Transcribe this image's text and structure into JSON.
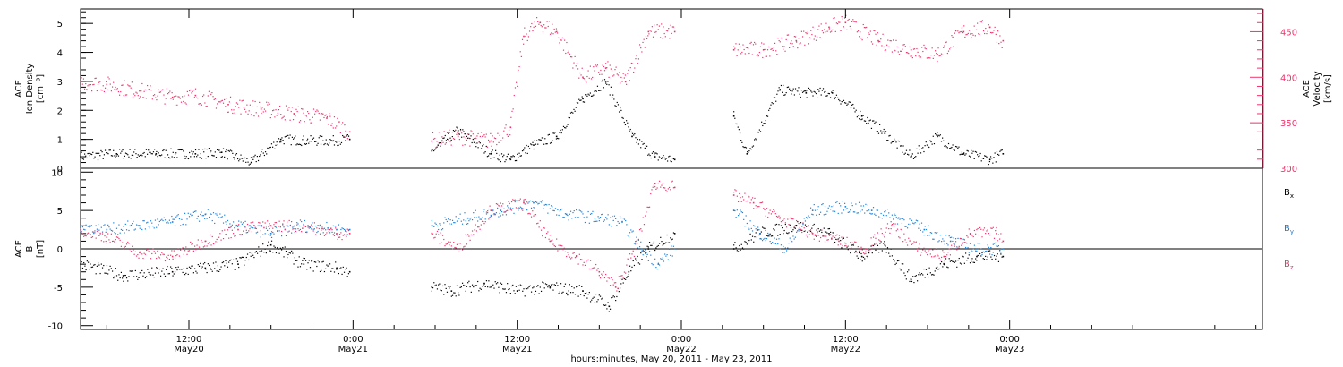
{
  "figure": {
    "xaxis_title": "hours:minutes, May 20, 2011 - May 23, 2011",
    "x_ticks": [
      {
        "x": 0.5,
        "time": "12:00",
        "day": "May20"
      },
      {
        "x": 1.0,
        "time": "0:00",
        "day": "May21"
      },
      {
        "x": 1.5,
        "time": "12:00",
        "day": "May21"
      },
      {
        "x": 2.0,
        "time": "0:00",
        "day": "May22"
      },
      {
        "x": 2.5,
        "time": "12:00",
        "day": "May22"
      },
      {
        "x": 3.0,
        "time": "0:00",
        "day": "May23"
      }
    ],
    "xlim_days_since_may20": [
      0.17,
      3.77
    ]
  },
  "chart_data": [
    {
      "type": "scatter",
      "panel": "top",
      "ylabel_left": [
        "ACE",
        "Ion Density",
        "[cm⁻³]"
      ],
      "ylabel_right": [
        "ACE",
        "Velocity",
        "[km/s]"
      ],
      "ylim": [
        0,
        5.5
      ],
      "y_ticks": [
        0,
        1,
        2,
        3,
        4,
        5
      ],
      "ylim_right": [
        300,
        475
      ],
      "y_ticks_right": [
        300,
        350,
        400,
        450
      ],
      "series": [
        {
          "key": "density",
          "axis": "left",
          "color": "#000000",
          "x": [
            0.17,
            0.28,
            0.4,
            0.52,
            0.6,
            0.69,
            0.78,
            0.86,
            0.94,
            0.99
          ],
          "y": [
            0.4,
            0.5,
            0.5,
            0.5,
            0.55,
            0.2,
            1.0,
            0.95,
            0.95,
            1.0
          ],
          "gaps": [
            [
              1.0,
              1.24
            ],
            [
              1.99,
              2.16
            ],
            [
              2.99,
              3.77
            ]
          ],
          "x2": [
            1.24,
            1.32,
            1.42,
            1.48,
            1.55,
            1.62,
            1.7,
            1.77,
            1.85,
            1.92,
            1.98
          ],
          "y2": [
            0.6,
            1.3,
            0.5,
            0.3,
            0.8,
            1.1,
            2.4,
            3.0,
            1.1,
            0.4,
            0.3
          ],
          "x3": [
            2.16,
            2.2,
            2.3,
            2.38,
            2.46,
            2.55,
            2.62,
            2.7,
            2.78,
            2.86,
            2.94,
            2.98
          ],
          "y3": [
            1.8,
            0.5,
            2.7,
            2.6,
            2.6,
            1.8,
            1.2,
            0.4,
            1.1,
            0.5,
            0.3,
            0.5
          ]
        },
        {
          "key": "velocity",
          "axis": "right",
          "color": "#e8366b",
          "x": [
            0.17,
            0.25,
            0.35,
            0.45,
            0.52,
            0.62,
            0.72,
            0.82,
            0.92,
            0.99
          ],
          "y": [
            395,
            392,
            385,
            378,
            380,
            370,
            365,
            360,
            355,
            340
          ],
          "x2": [
            1.24,
            1.32,
            1.42,
            1.48,
            1.52,
            1.57,
            1.62,
            1.7,
            1.77,
            1.83,
            1.9,
            1.98
          ],
          "y2": [
            330,
            335,
            330,
            345,
            445,
            460,
            450,
            400,
            410,
            395,
            450,
            450
          ],
          "x3": [
            2.16,
            2.25,
            2.35,
            2.45,
            2.5,
            2.6,
            2.7,
            2.78,
            2.86,
            2.94,
            2.98
          ],
          "y3": [
            430,
            430,
            440,
            455,
            460,
            440,
            430,
            425,
            450,
            455,
            440
          ]
        }
      ]
    },
    {
      "type": "scatter",
      "panel": "bottom",
      "ylabel_left": [
        "ACE",
        "B",
        "[nT]"
      ],
      "ylim": [
        -10.5,
        10.5
      ],
      "y_ticks": [
        -10,
        -5,
        0,
        5,
        10
      ],
      "zero_line": true,
      "legend": [
        {
          "label": "B",
          "sub": "x",
          "color": "#000000"
        },
        {
          "label": "B",
          "sub": "y",
          "color": "#1e7fd6"
        },
        {
          "label": "B",
          "sub": "z",
          "color": "#e8366b"
        }
      ],
      "series": [
        {
          "key": "Bx",
          "color": "#000000",
          "x": [
            0.17,
            0.3,
            0.45,
            0.55,
            0.65,
            0.75,
            0.85,
            0.95,
            0.99
          ],
          "y": [
            -2,
            -3.5,
            -3,
            -2.5,
            -2,
            0.5,
            -2,
            -2.5,
            -3
          ],
          "x2": [
            1.24,
            1.3,
            1.4,
            1.5,
            1.6,
            1.7,
            1.78,
            1.84,
            1.9,
            1.98
          ],
          "y2": [
            -5,
            -5.5,
            -4.5,
            -5.5,
            -5,
            -5.5,
            -7.5,
            -3,
            0,
            2
          ],
          "x3": [
            2.16,
            2.24,
            2.35,
            2.45,
            2.55,
            2.62,
            2.7,
            2.8,
            2.9,
            2.98
          ],
          "y3": [
            0,
            2,
            3,
            2,
            -1,
            0.5,
            -4,
            -2,
            -1,
            -1
          ]
        },
        {
          "key": "By",
          "color": "#1e7fd6",
          "x": [
            0.17,
            0.25,
            0.35,
            0.45,
            0.55,
            0.65,
            0.75,
            0.85,
            0.95,
            0.99
          ],
          "y": [
            3,
            2.5,
            3,
            3.5,
            4.5,
            3,
            2,
            3,
            2.5,
            2.5
          ],
          "x2": [
            1.24,
            1.35,
            1.45,
            1.55,
            1.65,
            1.75,
            1.82,
            1.88,
            1.93,
            1.98
          ],
          "y2": [
            3,
            4,
            5,
            6,
            4.5,
            4,
            3.5,
            0,
            -2,
            0
          ],
          "x3": [
            2.16,
            2.24,
            2.32,
            2.4,
            2.5,
            2.58,
            2.66,
            2.74,
            2.82,
            2.9,
            2.98
          ],
          "y3": [
            5,
            2,
            0,
            5,
            5.5,
            5,
            4,
            2.5,
            1,
            0,
            0
          ]
        },
        {
          "key": "Bz",
          "color": "#e8366b",
          "x": [
            0.17,
            0.25,
            0.35,
            0.45,
            0.55,
            0.65,
            0.75,
            0.85,
            0.95,
            0.99
          ],
          "y": [
            2.5,
            1.5,
            -0.5,
            -1,
            1,
            2.5,
            3,
            3,
            2,
            2
          ],
          "x2": [
            1.24,
            1.32,
            1.42,
            1.52,
            1.6,
            1.68,
            1.75,
            1.8,
            1.86,
            1.92,
            1.98
          ],
          "y2": [
            2,
            0,
            5,
            6,
            1,
            -1,
            -3,
            -5,
            0,
            8.5,
            8
          ],
          "x3": [
            2.16,
            2.22,
            2.3,
            2.4,
            2.48,
            2.56,
            2.64,
            2.72,
            2.8,
            2.88,
            2.96,
            2.98
          ],
          "y3": [
            7,
            6,
            4,
            2,
            1,
            0,
            3,
            0,
            -1,
            2,
            2,
            1
          ]
        }
      ]
    }
  ]
}
